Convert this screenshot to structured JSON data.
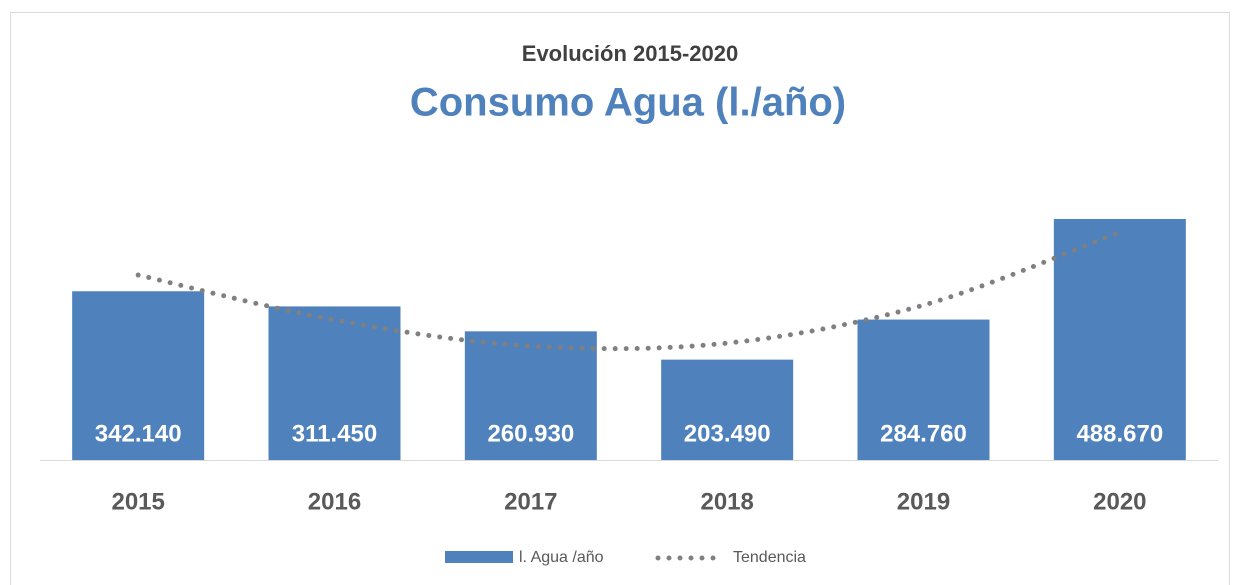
{
  "chart_data": {
    "type": "bar",
    "title": "Evolución 2015-2020",
    "subtitle": "Consumo Agua (l./año)",
    "categories": [
      "2015",
      "2016",
      "2017",
      "2018",
      "2019",
      "2020"
    ],
    "series": [
      {
        "name": "l. Agua /año",
        "color": "#4f81bd",
        "values": [
          342140,
          311450,
          260930,
          203490,
          284760,
          488670
        ],
        "value_labels": [
          "342.140",
          "311.450",
          "260.930",
          "203.490",
          "284.760",
          "488.670"
        ]
      },
      {
        "name": "Tendencia",
        "color": "#808080",
        "type": "line",
        "values": [
          375000,
          284000,
          231000,
          237000,
          314000,
          462000
        ]
      }
    ]
  }
}
